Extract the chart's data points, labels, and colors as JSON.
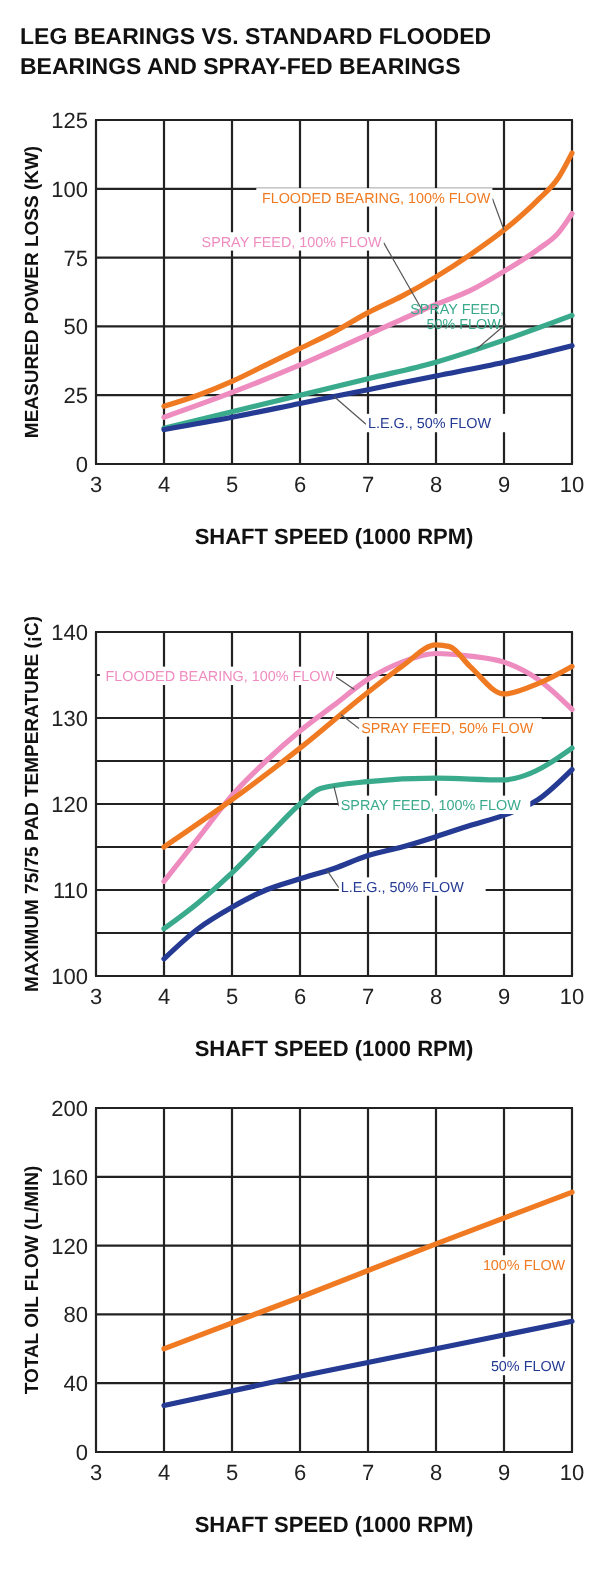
{
  "chart_data": [
    {
      "type": "line",
      "title": "LEG BEARINGS VS. STANDARD FLOODED BEARINGS AND SPRAY-FED BEARINGS",
      "xlabel": "SHAFT SPEED (1000 RPM)",
      "ylabel": "MEASURED POWER LOSS (KW)",
      "xlim": [
        3,
        10
      ],
      "xticks": [
        3,
        4,
        5,
        6,
        7,
        8,
        9,
        10
      ],
      "ylim": [
        0,
        125
      ],
      "yticks": [
        0,
        25,
        50,
        75,
        100,
        125
      ],
      "grid": true,
      "legend": false,
      "series": [
        {
          "name": "FLOODED BEARING, 100% FLOW",
          "color": "#f07a22",
          "x": [
            4,
            4.5,
            5,
            5.5,
            6,
            6.5,
            7,
            7.5,
            8,
            8.5,
            9,
            9.5,
            9.8,
            10
          ],
          "values": [
            21,
            25,
            30,
            36,
            42,
            48,
            55,
            61,
            68,
            76,
            85,
            96,
            104,
            113
          ]
        },
        {
          "name": "SPRAY FEED, 100% FLOW",
          "color": "#ee8cc0",
          "x": [
            4,
            5,
            6,
            7,
            8,
            8.5,
            9,
            9.5,
            9.8,
            10
          ],
          "values": [
            17,
            26,
            36,
            47,
            58,
            63,
            70,
            78,
            84,
            91
          ]
        },
        {
          "name": "SPRAY FEED, 50% FLOW.",
          "color": "#3aaa8c",
          "x": [
            4,
            5,
            6,
            7,
            8,
            9,
            10
          ],
          "values": [
            13,
            19,
            25,
            31,
            37,
            45,
            54
          ]
        },
        {
          "name": "L.E.G., 50% FLOW",
          "color": "#243a93",
          "x": [
            4,
            5,
            6,
            7,
            8,
            9,
            10
          ],
          "values": [
            12.5,
            17,
            22,
            27,
            32,
            37,
            43
          ]
        }
      ]
    },
    {
      "type": "line",
      "xlabel": "SHAFT SPEED (1000 RPM)",
      "ylabel": "MAXIMUM 75/75 PAD TEMPERATURE (¡C)",
      "xlim": [
        3,
        10
      ],
      "xticks": [
        3,
        4,
        5,
        6,
        7,
        8,
        9,
        10
      ],
      "ylim": [
        100,
        140
      ],
      "yticks": [
        100,
        {
          "value": 105,
          "label": null
        },
        110,
        {
          "value": 115,
          "label": null
        },
        120,
        {
          "value": 125,
          "label": null
        },
        130,
        {
          "value": 135,
          "label": null
        },
        140
      ],
      "grid": true,
      "legend": false,
      "series": [
        {
          "name": "FLOODED BEARING, 100% FLOW",
          "color": "#ee8cc0",
          "x": [
            4,
            4.5,
            5,
            5.5,
            6,
            6.5,
            7,
            7.5,
            8,
            8.5,
            9,
            9.5,
            10
          ],
          "values": [
            111,
            116,
            121,
            125,
            128.5,
            131.5,
            134.5,
            136.5,
            137.5,
            137.2,
            136.5,
            134.5,
            131
          ]
        },
        {
          "name": "SPRAY FEED, 50% FLOW",
          "color": "#f07a22",
          "x": [
            4,
            5,
            6,
            7,
            7.5,
            8,
            8.2,
            8.5,
            9,
            9.5,
            10
          ],
          "values": [
            115,
            120.5,
            126.5,
            133,
            136,
            138.5,
            138.3,
            136,
            132.8,
            134,
            136
          ]
        },
        {
          "name": "SPRAY FEED, 100% FLOW",
          "color": "#3aaa8c",
          "x": [
            4,
            4.5,
            5,
            5.5,
            6,
            6.3,
            7,
            8,
            9,
            9.3,
            10
          ],
          "values": [
            105.5,
            108.5,
            112,
            116,
            120,
            121.8,
            122.6,
            123,
            122.8,
            123.3,
            126.5
          ]
        },
        {
          "name": "L.E.G., 50% FLOW",
          "color": "#243a93",
          "x": [
            4,
            4.5,
            5,
            5.5,
            6,
            6.5,
            7,
            7.5,
            8,
            8.5,
            9,
            9.5,
            10
          ],
          "values": [
            102,
            105.5,
            108,
            110,
            111.3,
            112.5,
            114,
            115,
            116.2,
            117.5,
            118.7,
            120.5,
            124
          ]
        }
      ]
    },
    {
      "type": "line",
      "xlabel": "SHAFT SPEED (1000 RPM)",
      "ylabel": "TOTAL OIL FLOW (L/MIN)",
      "xlim": [
        3,
        10
      ],
      "xticks": [
        3,
        4,
        5,
        6,
        7,
        8,
        9,
        10
      ],
      "ylim": [
        0,
        200
      ],
      "yticks": [
        0,
        40,
        80,
        120,
        160,
        200
      ],
      "grid": true,
      "legend": false,
      "series": [
        {
          "name": "100% FLOW",
          "color": "#f07a22",
          "x": [
            4,
            6,
            8,
            10
          ],
          "values": [
            60,
            90,
            121,
            151
          ]
        },
        {
          "name": "50% FLOW",
          "color": "#243a93",
          "x": [
            4,
            6,
            8,
            10
          ],
          "values": [
            27,
            44,
            60,
            76
          ]
        }
      ]
    }
  ]
}
